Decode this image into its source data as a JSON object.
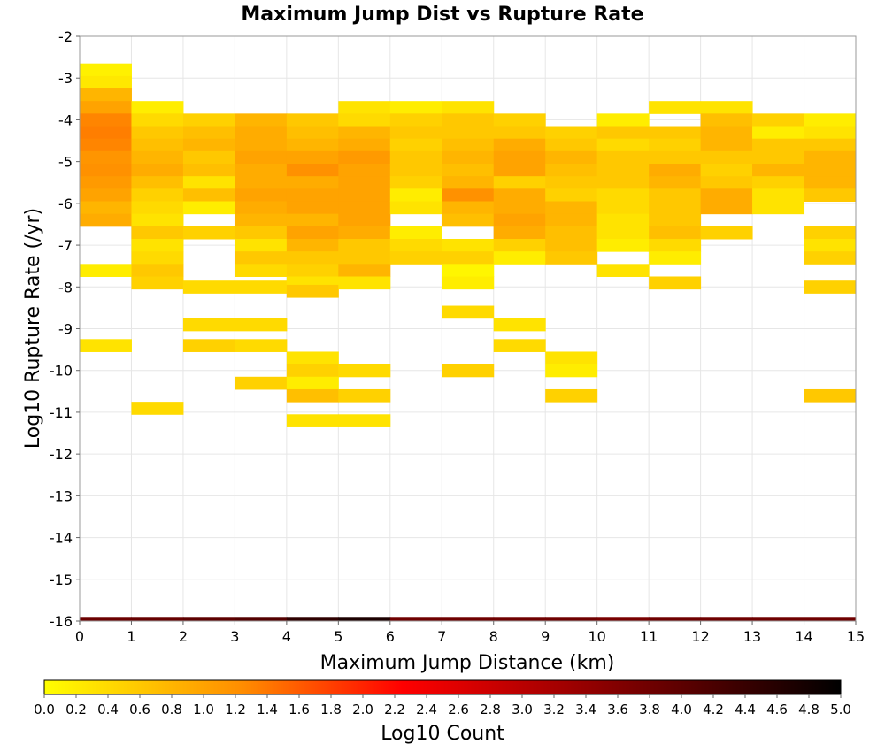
{
  "chart_data": {
    "type": "heatmap",
    "title": "Maximum Jump Dist vs Rupture Rate",
    "xlabel": "Maximum Jump Distance (km)",
    "ylabel": "Log10 Rupture Rate (/yr)",
    "xlim": [
      0,
      15
    ],
    "ylim": [
      -16,
      -2
    ],
    "x_ticks": [
      "0",
      "1",
      "2",
      "3",
      "4",
      "5",
      "6",
      "7",
      "8",
      "9",
      "10",
      "11",
      "12",
      "13",
      "14",
      "15"
    ],
    "y_ticks": [
      "-2",
      "-3",
      "-4",
      "-5",
      "-6",
      "-7",
      "-8",
      "-9",
      "-10",
      "-11",
      "-12",
      "-13",
      "-14",
      "-15",
      "-16"
    ],
    "bin_width_x": 1,
    "bin_height_y": 0.3,
    "grid": true,
    "colorbar": {
      "label": "Log10 Count",
      "range": [
        0,
        5
      ],
      "ticks": [
        "0.0",
        "0.2",
        "0.4",
        "0.6",
        "0.8",
        "1.0",
        "1.2",
        "1.4",
        "1.6",
        "1.8",
        "2.0",
        "2.2",
        "2.4",
        "2.6",
        "2.8",
        "3.0",
        "3.2",
        "3.4",
        "3.6",
        "3.8",
        "4.0",
        "4.2",
        "4.4",
        "4.6",
        "4.8",
        "5.0"
      ],
      "colors": [
        "#ffff00",
        "#ff8c00",
        "#ff0000",
        "#8b0000",
        "#000000"
      ]
    },
    "bottom_row": {
      "y": -16,
      "values": [
        3.85,
        3.9,
        4.0,
        4.1,
        4.5,
        4.7,
        3.8,
        3.8,
        3.8,
        3.8,
        3.7,
        3.8,
        3.8,
        3.8,
        3.8
      ]
    },
    "columns": [
      {
        "x": 0,
        "cells": [
          [
            -2.8,
            0.15
          ],
          [
            -3.1,
            0.25
          ],
          [
            -3.4,
            0.8
          ],
          [
            -3.7,
            1.0
          ],
          [
            -4.0,
            1.3
          ],
          [
            -4.3,
            1.35
          ],
          [
            -4.6,
            1.3
          ],
          [
            -4.9,
            1.15
          ],
          [
            -5.2,
            1.2
          ],
          [
            -5.5,
            1.1
          ],
          [
            -5.8,
            1.0
          ],
          [
            -6.1,
            0.8
          ],
          [
            -6.4,
            0.9
          ],
          [
            -7.6,
            0.2
          ],
          [
            -9.4,
            0.3
          ]
        ]
      },
      {
        "x": 1,
        "cells": [
          [
            -3.7,
            0.2
          ],
          [
            -4.0,
            0.4
          ],
          [
            -4.3,
            0.6
          ],
          [
            -4.6,
            0.7
          ],
          [
            -4.9,
            0.8
          ],
          [
            -5.2,
            0.9
          ],
          [
            -5.5,
            0.7
          ],
          [
            -5.8,
            0.5
          ],
          [
            -6.1,
            0.4
          ],
          [
            -6.4,
            0.3
          ],
          [
            -6.7,
            0.6
          ],
          [
            -7.0,
            0.3
          ],
          [
            -7.3,
            0.4
          ],
          [
            -7.6,
            0.6
          ],
          [
            -7.9,
            0.5
          ],
          [
            -10.9,
            0.4
          ]
        ]
      },
      {
        "x": 2,
        "cells": [
          [
            -4.0,
            0.5
          ],
          [
            -4.3,
            0.7
          ],
          [
            -4.6,
            0.8
          ],
          [
            -4.9,
            0.6
          ],
          [
            -5.2,
            0.7
          ],
          [
            -5.5,
            0.3
          ],
          [
            -5.8,
            0.7
          ],
          [
            -6.1,
            0.2
          ],
          [
            -6.7,
            0.5
          ],
          [
            -8.0,
            0.4
          ],
          [
            -8.9,
            0.4
          ],
          [
            -9.4,
            0.5
          ]
        ]
      },
      {
        "x": 3,
        "cells": [
          [
            -4.0,
            0.8
          ],
          [
            -4.3,
            0.9
          ],
          [
            -4.6,
            0.9
          ],
          [
            -4.9,
            1.0
          ],
          [
            -5.2,
            0.9
          ],
          [
            -5.5,
            0.9
          ],
          [
            -5.8,
            1.0
          ],
          [
            -6.1,
            0.9
          ],
          [
            -6.4,
            0.8
          ],
          [
            -6.7,
            0.6
          ],
          [
            -7.0,
            0.3
          ],
          [
            -7.3,
            0.6
          ],
          [
            -7.6,
            0.4
          ],
          [
            -8.0,
            0.4
          ],
          [
            -8.9,
            0.4
          ],
          [
            -9.4,
            0.4
          ],
          [
            -10.3,
            0.5
          ]
        ]
      },
      {
        "x": 4,
        "cells": [
          [
            -4.0,
            0.6
          ],
          [
            -4.3,
            0.7
          ],
          [
            -4.6,
            0.8
          ],
          [
            -4.9,
            1.0
          ],
          [
            -5.2,
            1.2
          ],
          [
            -5.5,
            0.9
          ],
          [
            -5.8,
            1.0
          ],
          [
            -6.1,
            1.0
          ],
          [
            -6.4,
            0.8
          ],
          [
            -6.7,
            1.0
          ],
          [
            -7.0,
            0.8
          ],
          [
            -7.3,
            0.6
          ],
          [
            -7.6,
            0.5
          ],
          [
            -7.9,
            0.3
          ],
          [
            -8.1,
            0.6
          ],
          [
            -9.7,
            0.3
          ],
          [
            -10.0,
            0.5
          ],
          [
            -10.3,
            0.2
          ],
          [
            -10.6,
            0.7
          ],
          [
            -11.2,
            0.3
          ]
        ]
      },
      {
        "x": 5,
        "cells": [
          [
            -3.7,
            0.3
          ],
          [
            -4.0,
            0.4
          ],
          [
            -4.3,
            0.8
          ],
          [
            -4.6,
            0.9
          ],
          [
            -4.9,
            1.1
          ],
          [
            -5.2,
            1.0
          ],
          [
            -5.5,
            1.0
          ],
          [
            -5.8,
            1.0
          ],
          [
            -6.1,
            1.0
          ],
          [
            -6.4,
            1.0
          ],
          [
            -6.7,
            0.9
          ],
          [
            -7.0,
            0.6
          ],
          [
            -7.3,
            0.6
          ],
          [
            -7.6,
            0.8
          ],
          [
            -7.9,
            0.3
          ],
          [
            -10.0,
            0.4
          ],
          [
            -10.6,
            0.5
          ],
          [
            -11.2,
            0.3
          ]
        ]
      },
      {
        "x": 6,
        "cells": [
          [
            -3.7,
            0.2
          ],
          [
            -4.0,
            0.5
          ],
          [
            -4.3,
            0.6
          ],
          [
            -4.6,
            0.5
          ],
          [
            -4.9,
            0.6
          ],
          [
            -5.2,
            0.6
          ],
          [
            -5.5,
            0.5
          ],
          [
            -5.8,
            0.2
          ],
          [
            -6.1,
            0.3
          ],
          [
            -6.7,
            0.2
          ],
          [
            -7.0,
            0.4
          ],
          [
            -7.3,
            0.5
          ]
        ]
      },
      {
        "x": 7,
        "cells": [
          [
            -3.7,
            0.3
          ],
          [
            -4.0,
            0.6
          ],
          [
            -4.3,
            0.6
          ],
          [
            -4.6,
            0.7
          ],
          [
            -4.9,
            0.8
          ],
          [
            -5.2,
            0.7
          ],
          [
            -5.5,
            0.8
          ],
          [
            -5.8,
            1.2
          ],
          [
            -6.1,
            0.8
          ],
          [
            -6.4,
            0.7
          ],
          [
            -7.0,
            0.3
          ],
          [
            -7.3,
            0.5
          ],
          [
            -7.6,
            0.1
          ],
          [
            -7.9,
            0.2
          ],
          [
            -8.6,
            0.4
          ],
          [
            -10.0,
            0.5
          ]
        ]
      },
      {
        "x": 8,
        "cells": [
          [
            -4.0,
            0.5
          ],
          [
            -4.3,
            0.6
          ],
          [
            -4.6,
            0.9
          ],
          [
            -4.9,
            1.0
          ],
          [
            -5.2,
            1.0
          ],
          [
            -5.5,
            0.5
          ],
          [
            -5.8,
            0.9
          ],
          [
            -6.1,
            0.9
          ],
          [
            -6.4,
            1.0
          ],
          [
            -6.7,
            0.9
          ],
          [
            -7.0,
            0.5
          ],
          [
            -7.3,
            0.2
          ],
          [
            -8.9,
            0.3
          ],
          [
            -9.4,
            0.4
          ]
        ]
      },
      {
        "x": 9,
        "cells": [
          [
            -4.3,
            0.5
          ],
          [
            -4.6,
            0.6
          ],
          [
            -4.9,
            0.8
          ],
          [
            -5.2,
            0.7
          ],
          [
            -5.5,
            0.6
          ],
          [
            -5.8,
            0.5
          ],
          [
            -6.1,
            0.8
          ],
          [
            -6.4,
            0.8
          ],
          [
            -6.7,
            0.7
          ],
          [
            -7.0,
            0.7
          ],
          [
            -7.3,
            0.6
          ],
          [
            -9.7,
            0.3
          ],
          [
            -10.0,
            0.2
          ],
          [
            -10.6,
            0.5
          ]
        ]
      },
      {
        "x": 10,
        "cells": [
          [
            -4.0,
            0.2
          ],
          [
            -4.3,
            0.6
          ],
          [
            -4.6,
            0.4
          ],
          [
            -4.9,
            0.6
          ],
          [
            -5.2,
            0.6
          ],
          [
            -5.5,
            0.6
          ],
          [
            -5.8,
            0.4
          ],
          [
            -6.1,
            0.4
          ],
          [
            -6.4,
            0.3
          ],
          [
            -6.7,
            0.3
          ],
          [
            -7.0,
            0.2
          ],
          [
            -7.6,
            0.3
          ]
        ]
      },
      {
        "x": 11,
        "cells": [
          [
            -3.7,
            0.3
          ],
          [
            -4.3,
            0.6
          ],
          [
            -4.6,
            0.5
          ],
          [
            -4.9,
            0.6
          ],
          [
            -5.2,
            0.9
          ],
          [
            -5.5,
            0.8
          ],
          [
            -5.8,
            0.6
          ],
          [
            -6.1,
            0.6
          ],
          [
            -6.4,
            0.6
          ],
          [
            -6.7,
            0.7
          ],
          [
            -7.0,
            0.4
          ],
          [
            -7.3,
            0.2
          ],
          [
            -7.9,
            0.5
          ]
        ]
      },
      {
        "x": 12,
        "cells": [
          [
            -3.7,
            0.3
          ],
          [
            -4.0,
            0.7
          ],
          [
            -4.3,
            0.8
          ],
          [
            -4.6,
            0.8
          ],
          [
            -4.9,
            0.6
          ],
          [
            -5.2,
            0.5
          ],
          [
            -5.5,
            0.6
          ],
          [
            -5.8,
            0.9
          ],
          [
            -6.1,
            0.9
          ],
          [
            -6.7,
            0.5
          ]
        ]
      },
      {
        "x": 13,
        "cells": [
          [
            -4.0,
            0.5
          ],
          [
            -4.3,
            0.2
          ],
          [
            -4.6,
            0.6
          ],
          [
            -4.9,
            0.6
          ],
          [
            -5.2,
            0.8
          ],
          [
            -5.5,
            0.5
          ],
          [
            -5.8,
            0.3
          ],
          [
            -6.1,
            0.3
          ]
        ]
      },
      {
        "x": 14,
        "cells": [
          [
            -4.0,
            0.2
          ],
          [
            -4.3,
            0.3
          ],
          [
            -4.6,
            0.6
          ],
          [
            -4.9,
            0.8
          ],
          [
            -5.2,
            0.8
          ],
          [
            -5.5,
            0.8
          ],
          [
            -5.8,
            0.6
          ],
          [
            -6.7,
            0.5
          ],
          [
            -7.0,
            0.3
          ],
          [
            -7.3,
            0.5
          ],
          [
            -8.0,
            0.5
          ],
          [
            -10.6,
            0.6
          ]
        ]
      }
    ]
  }
}
